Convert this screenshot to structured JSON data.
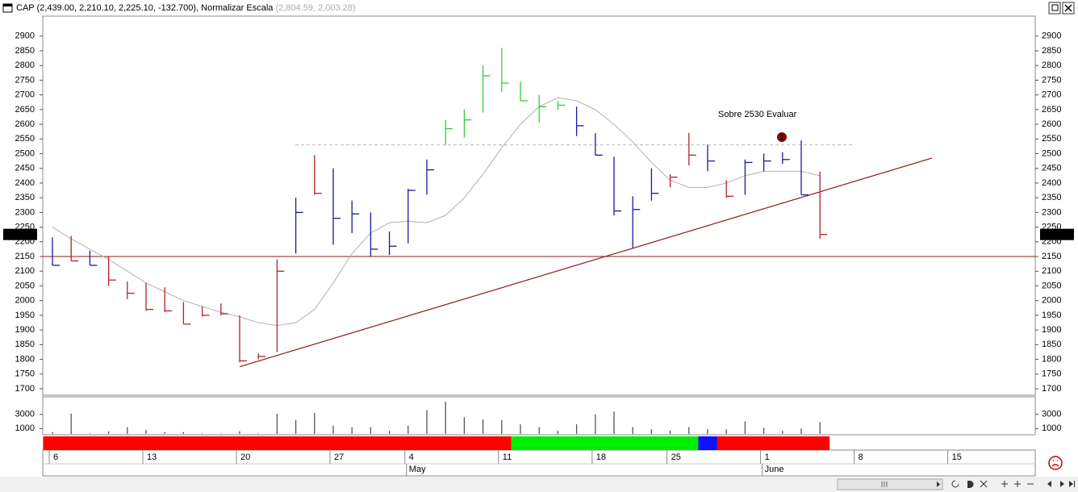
{
  "header": {
    "symbol": "CAP",
    "values": "(2,439.00, 2,210.10, 2,225.10, -132.700),",
    "indicator": "Normalizar Escala",
    "indicator_values": "(2,804.59, 2,003.28)"
  },
  "chart_data": {
    "type": "ohlc",
    "categories": [
      "6",
      null,
      null,
      null,
      null,
      "13",
      null,
      null,
      null,
      null,
      "20",
      null,
      null,
      null,
      null,
      "27",
      null,
      null,
      null,
      "4",
      null,
      null,
      null,
      null,
      "11",
      null,
      null,
      null,
      null,
      "18",
      null,
      null,
      null,
      "25",
      null,
      null,
      null,
      null,
      "1",
      null,
      null,
      null,
      null,
      "8",
      null,
      null,
      null,
      null,
      "15",
      null,
      null,
      null,
      null
    ],
    "months": [
      null,
      null,
      null,
      null,
      null,
      null,
      null,
      null,
      null,
      null,
      null,
      null,
      null,
      null,
      null,
      null,
      null,
      null,
      null,
      "May",
      null,
      null,
      null,
      null,
      null,
      null,
      null,
      null,
      null,
      null,
      null,
      null,
      null,
      null,
      null,
      null,
      null,
      null,
      "June",
      null,
      null,
      null,
      null,
      null,
      null,
      null,
      null,
      null,
      null,
      null,
      null,
      null,
      null
    ],
    "high": [
      2215,
      2220,
      2170,
      2150,
      2065,
      2060,
      2045,
      1995,
      1980,
      1990,
      1950,
      1820,
      2140,
      2350,
      2495,
      2450,
      2340,
      2300,
      2235,
      2380,
      2480,
      2615,
      2650,
      2800,
      2860,
      2745,
      2700,
      2680,
      2660,
      2570,
      2490,
      2355,
      2450,
      2430,
      2570,
      2530,
      2410,
      2480,
      2500,
      2505,
      2545,
      2439,
      null,
      null,
      null,
      null,
      null,
      null,
      null,
      null,
      null,
      null,
      null
    ],
    "low": [
      2120,
      2135,
      2120,
      2050,
      2005,
      1965,
      1960,
      1920,
      1945,
      1950,
      1790,
      1800,
      1825,
      2160,
      2360,
      2190,
      2230,
      2150,
      2155,
      2195,
      2360,
      2530,
      2555,
      2640,
      2710,
      2680,
      2605,
      2650,
      2560,
      2495,
      2290,
      2180,
      2340,
      2385,
      2460,
      2440,
      2350,
      2360,
      2440,
      2465,
      2360,
      2210.1,
      null,
      null,
      null,
      null,
      null,
      null,
      null,
      null,
      null,
      null,
      null
    ],
    "close": [
      2120,
      2135,
      2120,
      2070,
      2025,
      1970,
      1965,
      1920,
      1950,
      1955,
      1795,
      1810,
      2100,
      2300,
      2365,
      2280,
      2295,
      2175,
      2185,
      2375,
      2445,
      2585,
      2615,
      2765,
      2740,
      2680,
      2660,
      2665,
      2595,
      2495,
      2305,
      2310,
      2365,
      2420,
      2495,
      2475,
      2355,
      2470,
      2475,
      2480,
      2360,
      2225.1,
      null,
      null,
      null,
      null,
      null,
      null,
      null,
      null,
      null,
      null,
      null
    ],
    "colors": [
      "#1a1a9a",
      "#b22222",
      "#1a1a9a",
      "#b22222",
      "#b22222",
      "#b22222",
      "#b22222",
      "#b22222",
      "#b22222",
      "#b22222",
      "#b22222",
      "#b22222",
      "#b22222",
      "#1a1a9a",
      "#b22222",
      "#1a1a9a",
      "#1a1a9a",
      "#1a1a9a",
      "#1a1a9a",
      "#1a1a9a",
      "#1a1a9a",
      "#33cc33",
      "#33cc33",
      "#33cc33",
      "#33cc33",
      "#33cc33",
      "#33cc33",
      "#33cc33",
      "#1a1a9a",
      "#1a1a9a",
      "#1a1a9a",
      "#1a1a9a",
      "#1a1a9a",
      "#b22222",
      "#b22222",
      "#1a1a9a",
      "#b22222",
      "#1a1a9a",
      "#1a1a9a",
      "#1a1a9a",
      "#1a1a9a",
      "#b22222",
      null,
      null,
      null,
      null,
      null,
      null,
      null,
      null,
      null,
      null,
      null
    ],
    "volume": [
      500,
      3100,
      300,
      600,
      1200,
      800,
      500,
      500,
      300,
      300,
      600,
      300,
      3100,
      2200,
      3200,
      1400,
      1200,
      1200,
      700,
      1400,
      3600,
      4800,
      2600,
      2300,
      2200,
      1600,
      1200,
      700,
      1600,
      3000,
      3400,
      1200,
      900,
      700,
      1200,
      900,
      900,
      2000,
      1100,
      700,
      1000,
      1900,
      null,
      null,
      null,
      null,
      null,
      null,
      null,
      null,
      null,
      null,
      null
    ],
    "strip_colors": [
      "#ff0000",
      "#ff0000",
      "#ff0000",
      "#ff0000",
      "#ff0000",
      "#ff0000",
      "#ff0000",
      "#ff0000",
      "#ff0000",
      "#ff0000",
      "#ff0000",
      "#ff0000",
      "#ff0000",
      "#ff0000",
      "#ff0000",
      "#ff0000",
      "#ff0000",
      "#ff0000",
      "#ff0000",
      "#ff0000",
      "#ff0000",
      "#ff0000",
      "#ff0000",
      "#ff0000",
      "#ff0000",
      "#00ee00",
      "#00ee00",
      "#00ee00",
      "#00ee00",
      "#00ee00",
      "#00ee00",
      "#00ee00",
      "#00ee00",
      "#00ee00",
      "#00ee00",
      "#1010ff",
      "#ff0000",
      "#ff0000",
      "#ff0000",
      "#ff0000",
      "#ff0000",
      "#ff0000",
      null,
      null,
      null,
      null,
      null,
      null,
      null,
      null,
      null,
      null,
      null
    ],
    "ma": {
      "color": "#b0b0b0",
      "values": [
        2250,
        2210,
        2175,
        2140,
        2100,
        2060,
        2030,
        2000,
        1980,
        1960,
        1945,
        1925,
        1915,
        1925,
        1970,
        2060,
        2160,
        2230,
        2265,
        2270,
        2265,
        2290,
        2350,
        2430,
        2520,
        2600,
        2660,
        2690,
        2680,
        2650,
        2600,
        2540,
        2470,
        2410,
        2385,
        2385,
        2400,
        2425,
        2440,
        2440,
        2440,
        2425,
        null,
        null,
        null,
        null,
        null,
        null,
        null,
        null,
        null,
        null,
        null
      ]
    },
    "ylim": [
      1678,
      2968
    ],
    "yticks": [
      1700,
      1750,
      1800,
      1850,
      1900,
      1950,
      2000,
      2050,
      2100,
      2150,
      2200,
      2250,
      2300,
      2350,
      2400,
      2450,
      2500,
      2550,
      2600,
      2650,
      2700,
      2750,
      2800,
      2850,
      2900
    ],
    "volume_ylim": [
      0,
      5500
    ],
    "volume_yticks": [
      1000,
      3000
    ],
    "hline": 2150,
    "dashed_level": 2530,
    "trendline": [
      1775,
      2485
    ],
    "annotation": "Sobre 2530 Evaluar",
    "marker": "1",
    "last_label": "2225.10"
  }
}
